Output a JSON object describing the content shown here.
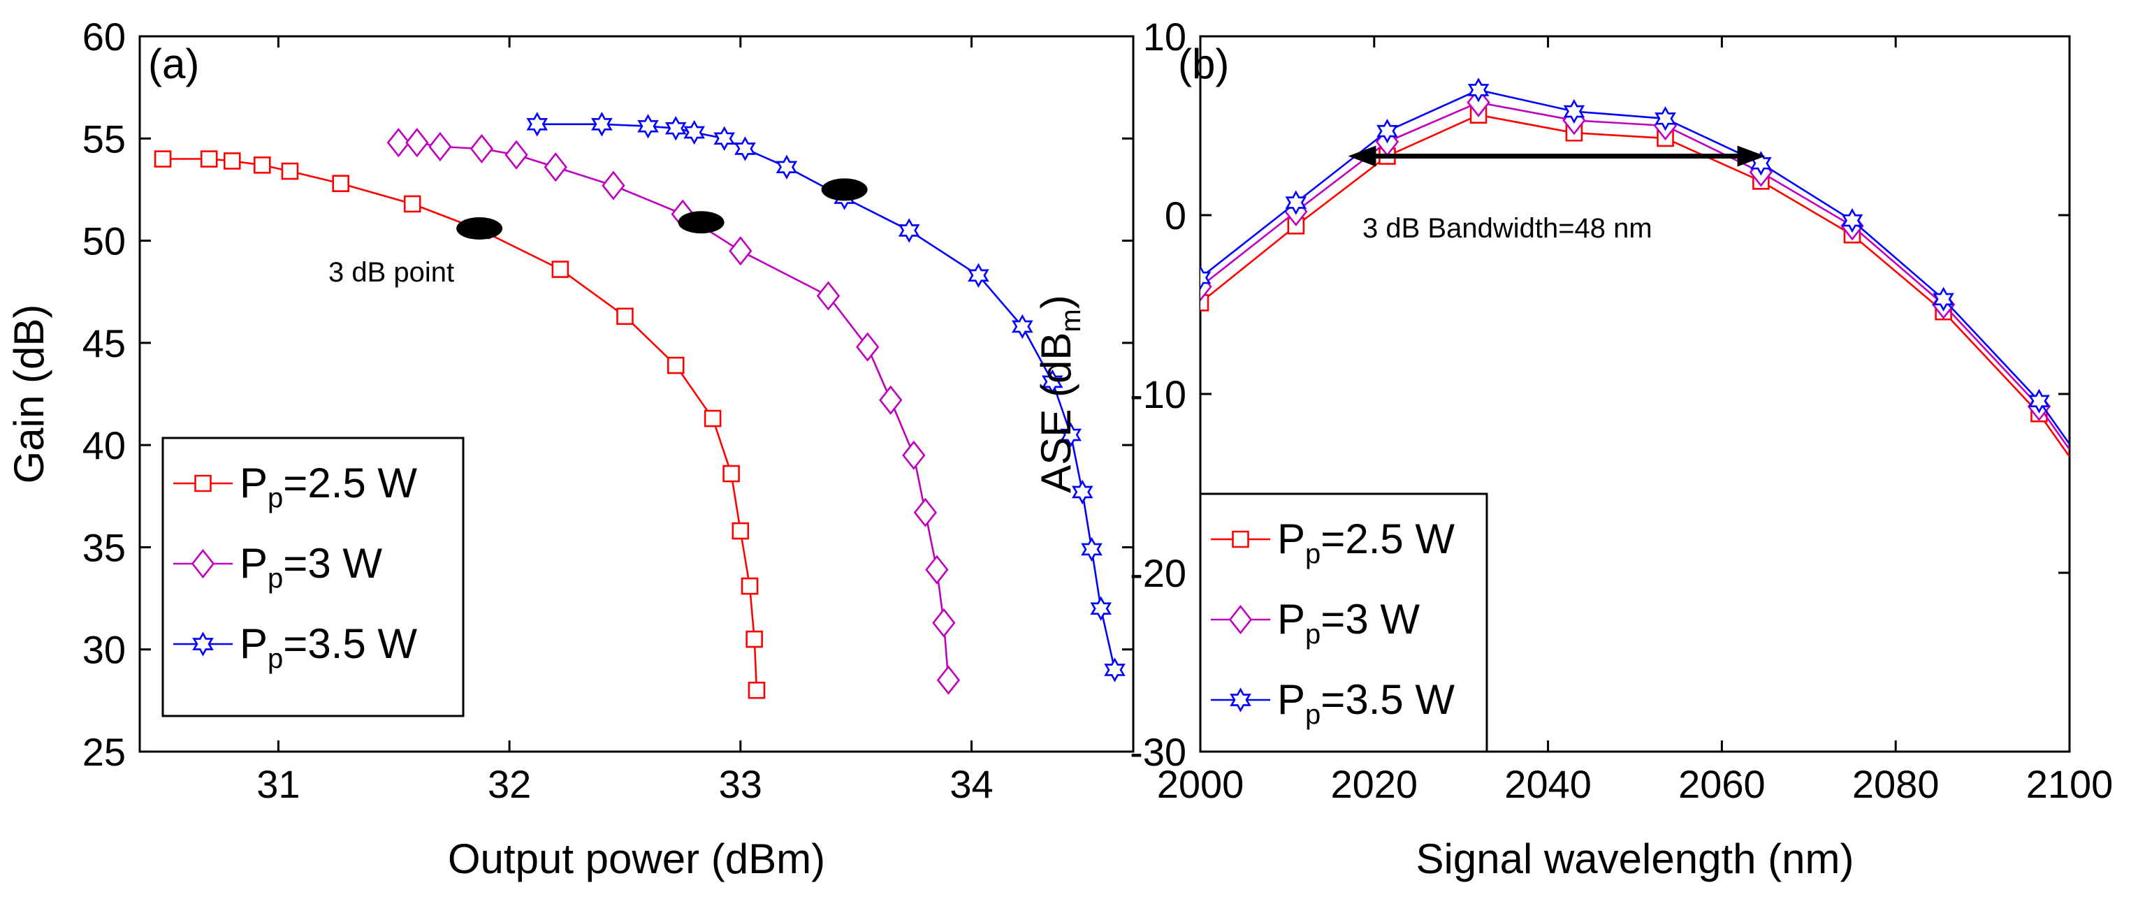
{
  "chart_data": [
    {
      "panel": "(a)",
      "type": "line",
      "xlabel": "Output power (dBm)",
      "ylabel": "Gain (dB)",
      "xlim": [
        30.4,
        34.7
      ],
      "ylim": [
        25,
        60
      ],
      "xticks": [
        31,
        32,
        33,
        34
      ],
      "yticks": [
        25,
        30,
        35,
        40,
        45,
        50,
        55,
        60
      ],
      "legend_position": "bottom-left",
      "annotation": "3 dB point",
      "series": [
        {
          "name": "P",
          "sub": "p",
          "suffix": "=2.5 W",
          "color": "#ff0000",
          "marker": "square",
          "x": [
            30.5,
            30.7,
            30.8,
            30.93,
            31.05,
            31.27,
            31.58,
            31.88,
            32.22,
            32.5,
            32.72,
            32.88,
            32.96,
            33.0,
            33.04,
            33.06,
            33.07
          ],
          "y": [
            54.0,
            54.0,
            53.9,
            53.7,
            53.4,
            52.8,
            51.8,
            50.5,
            48.6,
            46.3,
            43.9,
            41.3,
            38.6,
            35.8,
            33.1,
            30.5,
            28.0
          ],
          "three_db_point": [
            31.87,
            50.6
          ]
        },
        {
          "name": "P",
          "sub": "p",
          "suffix": "=3 W",
          "color": "#bf00bf",
          "marker": "diamond",
          "x": [
            31.52,
            31.6,
            31.7,
            31.88,
            32.03,
            32.2,
            32.45,
            32.75,
            33.0,
            33.38,
            33.55,
            33.65,
            33.75,
            33.8,
            33.85,
            33.88,
            33.9
          ],
          "y": [
            54.8,
            54.8,
            54.6,
            54.5,
            54.2,
            53.6,
            52.7,
            51.3,
            49.5,
            47.3,
            44.8,
            42.2,
            39.5,
            36.7,
            33.9,
            31.3,
            28.5
          ],
          "three_db_point": [
            32.83,
            50.9
          ]
        },
        {
          "name": "P",
          "sub": "p",
          "suffix": "=3.5 W",
          "color": "#0000ff",
          "marker": "star",
          "x": [
            32.12,
            32.4,
            32.6,
            32.72,
            32.8,
            32.93,
            33.02,
            33.2,
            33.45,
            33.73,
            34.03,
            34.22,
            34.35,
            34.43,
            34.48,
            34.52,
            34.56,
            34.62
          ],
          "y": [
            55.7,
            55.7,
            55.6,
            55.5,
            55.3,
            55.0,
            54.5,
            53.6,
            52.1,
            50.5,
            48.3,
            45.8,
            43.1,
            40.5,
            37.7,
            34.9,
            32.0,
            29.0
          ],
          "three_db_point": [
            33.45,
            52.5
          ]
        }
      ]
    },
    {
      "panel": "(b)",
      "type": "line",
      "xlabel": "Signal wavelength (nm)",
      "ylabel": "ASE (dB",
      "ylabel_sub": "m",
      "ylabel_close": ")",
      "xlim": [
        2000,
        2100
      ],
      "ylim": [
        -30,
        10
      ],
      "xticks": [
        2000,
        2020,
        2040,
        2060,
        2080,
        2100
      ],
      "yticks": [
        -30,
        -20,
        -10,
        0,
        10
      ],
      "legend_position": "bottom-left",
      "annotation": "3 dB Bandwidth=48 nm",
      "bandwidth_arrow": {
        "x_start": 2017,
        "x_end": 2065,
        "y": 3.3
      },
      "series": [
        {
          "name": "P",
          "sub": "p",
          "suffix": "=2.5 W",
          "color": "#ff0000",
          "marker": "square",
          "x": [
            2000,
            2011,
            2021.5,
            2032,
            2043,
            2053.5,
            2064.5,
            2075,
            2085.5,
            2096.5,
            2100
          ],
          "y": [
            -4.9,
            -0.6,
            3.3,
            5.6,
            4.6,
            4.3,
            1.9,
            -1.1,
            -5.4,
            -11.1,
            -13.5
          ],
          "show_marker": [
            true,
            true,
            true,
            true,
            true,
            true,
            true,
            true,
            true,
            true,
            false
          ]
        },
        {
          "name": "P",
          "sub": "p",
          "suffix": "=3 W",
          "color": "#bf00bf",
          "marker": "diamond",
          "x": [
            2000,
            2011,
            2021.5,
            2032,
            2043,
            2053.5,
            2064.5,
            2075,
            2085.5,
            2096.5,
            2100
          ],
          "y": [
            -4.0,
            0.2,
            4.1,
            6.3,
            5.3,
            5.0,
            2.4,
            -0.6,
            -5.0,
            -10.7,
            -13.1
          ],
          "show_marker": [
            true,
            true,
            true,
            true,
            true,
            true,
            true,
            true,
            true,
            true,
            false
          ]
        },
        {
          "name": "P",
          "sub": "p",
          "suffix": "=3.5 W",
          "color": "#0000ff",
          "marker": "star",
          "x": [
            2000,
            2011,
            2021.5,
            2032,
            2043,
            2053.5,
            2064.5,
            2075,
            2085.5,
            2096.5,
            2100
          ],
          "y": [
            -3.5,
            0.7,
            4.7,
            7.0,
            5.8,
            5.4,
            2.9,
            -0.3,
            -4.7,
            -10.4,
            -12.8
          ],
          "show_marker": [
            true,
            true,
            true,
            true,
            true,
            true,
            true,
            true,
            true,
            true,
            false
          ]
        }
      ]
    }
  ]
}
